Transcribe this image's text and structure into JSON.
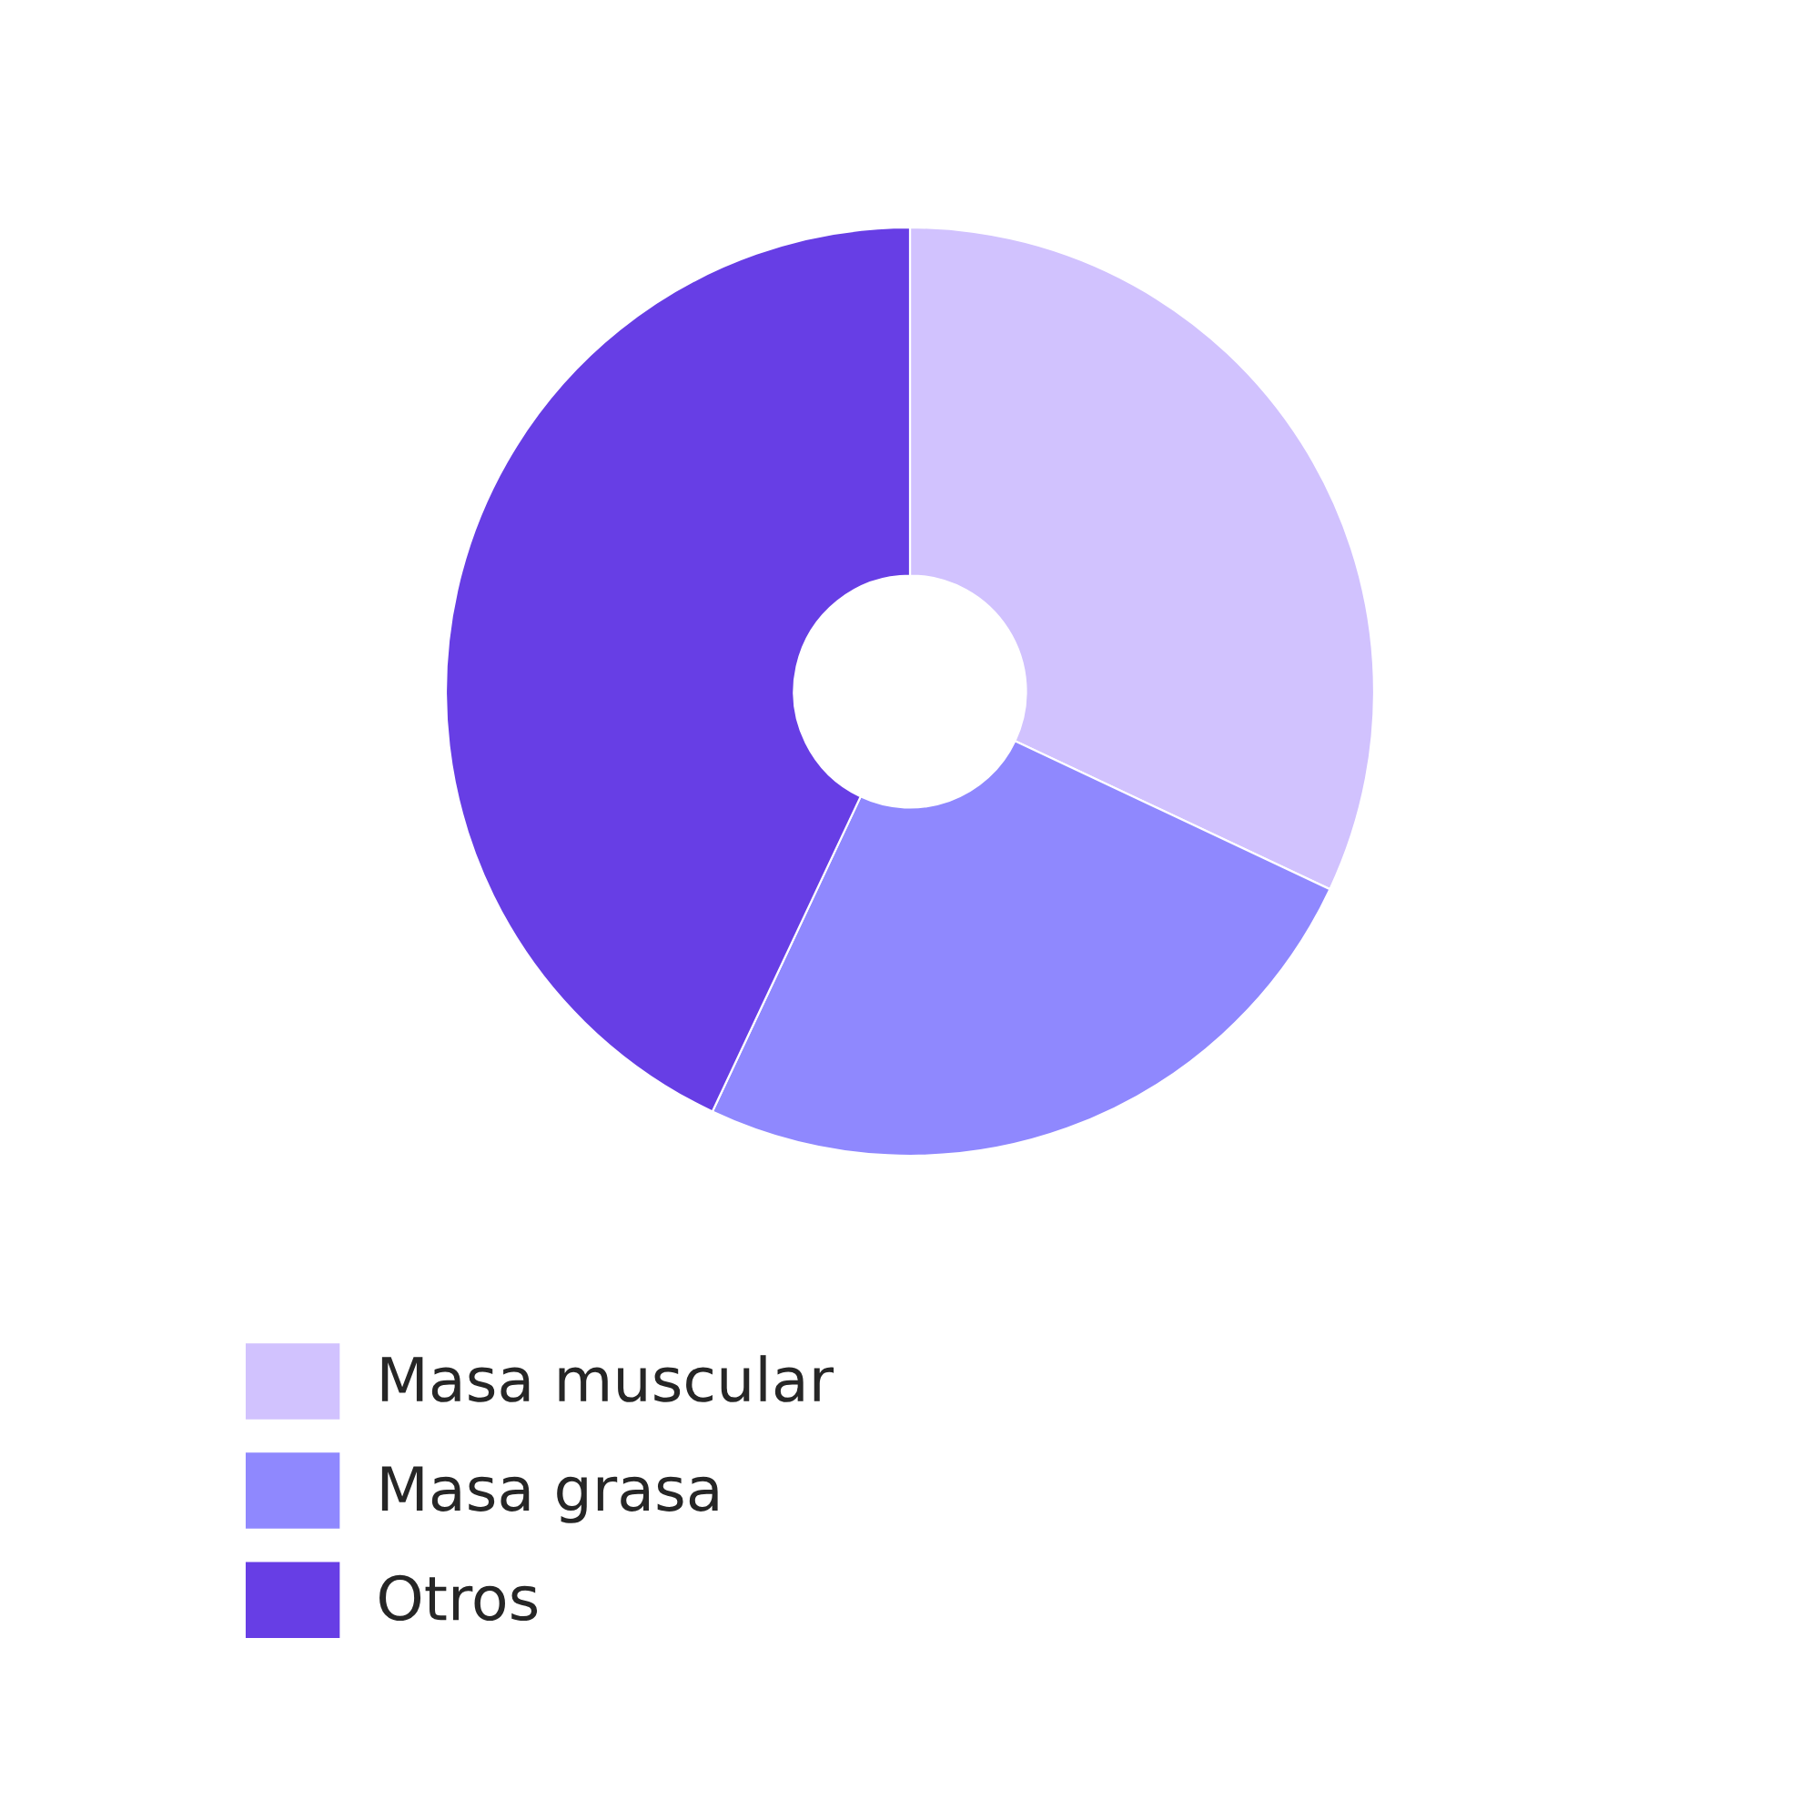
{
  "chart_data": {
    "type": "donut",
    "categories": [
      "Masa muscular",
      "Masa grasa",
      "Otros"
    ],
    "values": [
      32,
      25,
      43
    ],
    "colors": [
      "#d1c2fe",
      "#8f88fe",
      "#673ee5"
    ],
    "legend": "bottom"
  }
}
